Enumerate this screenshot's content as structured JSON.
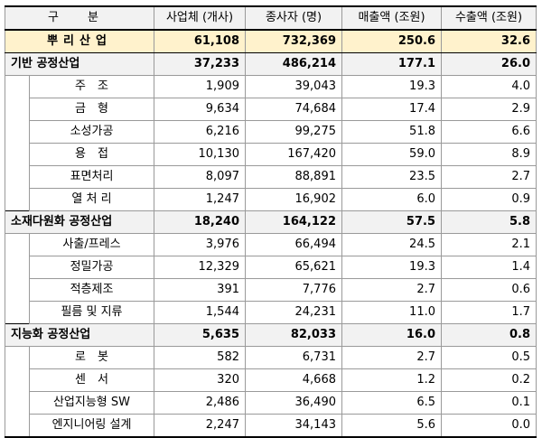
{
  "header": {
    "category": "구 분",
    "companies": "사업체 (개사)",
    "employees": "종사자 (명)",
    "sales": "매출액 (조원)",
    "exports": "수출액 (조원)"
  },
  "total": {
    "label": "뿌리산업",
    "companies": "61,108",
    "employees": "732,369",
    "sales": "250.6",
    "exports": "32.6"
  },
  "groups": [
    {
      "label": "기반 공정산업",
      "companies": "37,233",
      "employees": "486,214",
      "sales": "177.1",
      "exports": "26.0",
      "rows": [
        {
          "label": "주　조",
          "companies": "1,909",
          "employees": "39,043",
          "sales": "19.3",
          "exports": "4.0"
        },
        {
          "label": "금　형",
          "companies": "9,634",
          "employees": "74,684",
          "sales": "17.4",
          "exports": "2.9"
        },
        {
          "label": "소성가공",
          "companies": "6,216",
          "employees": "99,275",
          "sales": "51.8",
          "exports": "6.6"
        },
        {
          "label": "용　접",
          "companies": "10,130",
          "employees": "167,420",
          "sales": "59.0",
          "exports": "8.9"
        },
        {
          "label": "표면처리",
          "companies": "8,097",
          "employees": "88,891",
          "sales": "23.5",
          "exports": "2.7"
        },
        {
          "label": "열 처 리",
          "companies": "1,247",
          "employees": "16,902",
          "sales": "6.0",
          "exports": "0.9"
        }
      ]
    },
    {
      "label": "소재다원화 공정산업",
      "companies": "18,240",
      "employees": "164,122",
      "sales": "57.5",
      "exports": "5.8",
      "rows": [
        {
          "label": "사출/프레스",
          "companies": "3,976",
          "employees": "66,494",
          "sales": "24.5",
          "exports": "2.1"
        },
        {
          "label": "정밀가공",
          "companies": "12,329",
          "employees": "65,621",
          "sales": "19.3",
          "exports": "1.4"
        },
        {
          "label": "적층제조",
          "companies": "391",
          "employees": "7,776",
          "sales": "2.7",
          "exports": "0.6"
        },
        {
          "label": "필름 및 지류",
          "companies": "1,544",
          "employees": "24,231",
          "sales": "11.0",
          "exports": "1.7"
        }
      ]
    },
    {
      "label": "지능화 공정산업",
      "companies": "5,635",
      "employees": "82,033",
      "sales": "16.0",
      "exports": "0.8",
      "rows": [
        {
          "label": "로　봇",
          "companies": "582",
          "employees": "6,731",
          "sales": "2.7",
          "exports": "0.5"
        },
        {
          "label": "센　서",
          "companies": "320",
          "employees": "4,668",
          "sales": "1.2",
          "exports": "0.2"
        },
        {
          "label": "산업지능형 SW",
          "companies": "2,486",
          "employees": "36,490",
          "sales": "6.5",
          "exports": "0.1"
        },
        {
          "label": "엔지니어링 설계",
          "companies": "2,247",
          "employees": "34,143",
          "sales": "5.6",
          "exports": "0.0"
        }
      ]
    }
  ]
}
